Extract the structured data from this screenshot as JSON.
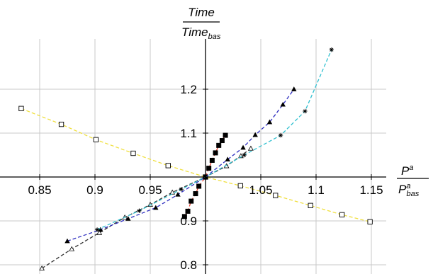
{
  "chart_data": {
    "type": "line",
    "xlim": [
      0.83,
      1.16
    ],
    "ylim": [
      0.78,
      1.31
    ],
    "x_axis_crosses_y_at": 1.0,
    "y_axis_crosses_x_at": 1.0,
    "grid": true,
    "x_ticks": [
      "0.85",
      "0.9",
      "0.95",
      "1.05",
      "1.1",
      "1.15"
    ],
    "y_ticks": [
      "0.8",
      "0.9",
      "1.1",
      "1.2"
    ],
    "x_tick_values": [
      0.85,
      0.9,
      0.95,
      1.05,
      1.1,
      1.15
    ],
    "y_tick_values": [
      0.8,
      0.9,
      1.1,
      1.2
    ],
    "ylabel": {
      "numerator": "Time",
      "denominator": "Time",
      "denominator_subscript": "bas"
    },
    "xlabel": {
      "numerator": "P",
      "numerator_superscript": "a",
      "denominator": "P",
      "denominator_superscript": "a",
      "denominator_subscript": "bas"
    },
    "series": [
      {
        "color": "#f0e040",
        "marker": "square",
        "x": [
          0.8333,
          0.8696,
          0.9009,
          0.9346,
          0.9662,
          1.0,
          1.0316,
          1.0633,
          1.095,
          1.1235,
          1.1488
        ],
        "y": [
          1.156,
          1.12,
          1.085,
          1.054,
          1.026,
          1.0,
          0.98,
          0.958,
          0.935,
          0.914,
          0.898
        ]
      },
      {
        "color": "#303030",
        "marker": "triangle",
        "x": [
          0.852,
          0.879,
          0.904,
          0.927,
          0.95,
          0.97,
          1.0,
          1.019,
          1.032,
          1.041
        ],
        "y": [
          0.792,
          0.836,
          0.873,
          0.908,
          0.937,
          0.965,
          1.0,
          1.025,
          1.048,
          1.065
        ]
      },
      {
        "color": "#e04030",
        "marker": "square-filled",
        "x": [
          0.981,
          0.984,
          0.987,
          0.991,
          0.994,
          1.0,
          1.003,
          1.006,
          1.009,
          1.012,
          1.015,
          1.018
        ],
        "y": [
          0.91,
          0.922,
          0.945,
          0.962,
          0.979,
          1.0,
          1.02,
          1.038,
          1.055,
          1.072,
          1.083,
          1.095
        ]
      },
      {
        "color": "#3030c0",
        "marker": "triangle-filled",
        "x": [
          0.875,
          0.905,
          0.93,
          0.955,
          0.975,
          1.0,
          1.02,
          1.034,
          1.045,
          1.058,
          1.07,
          1.08
        ],
        "y": [
          0.854,
          0.88,
          0.905,
          0.93,
          0.96,
          1.0,
          1.04,
          1.067,
          1.096,
          1.125,
          1.165,
          1.2
        ]
      },
      {
        "color": "#30c0d0",
        "marker": "star",
        "x": [
          0.902,
          0.94,
          0.978,
          1.0,
          1.035,
          1.068,
          1.09,
          1.114
        ],
        "y": [
          0.88,
          0.923,
          0.972,
          1.0,
          1.05,
          1.095,
          1.15,
          1.29
        ]
      }
    ]
  }
}
